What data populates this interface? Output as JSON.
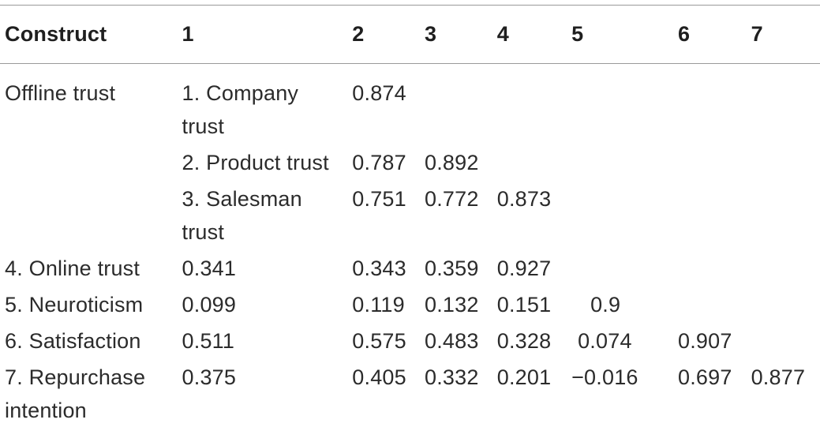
{
  "headers": [
    "Construct",
    "1",
    "2",
    "3",
    "4",
    "5",
    "6",
    "7"
  ],
  "rows": [
    {
      "construct": "Offline trust",
      "sub": "1. Company trust",
      "v2": "0.874",
      "v3": "",
      "v4": "",
      "v5": "",
      "v6": "",
      "v7": "",
      "v1": ""
    },
    {
      "construct": "",
      "sub": "2. Product trust",
      "v2": "0.787",
      "v3": "0.892",
      "v4": "",
      "v5": "",
      "v6": "",
      "v7": "",
      "v1": ""
    },
    {
      "construct": "",
      "sub": "3. Salesman trust",
      "v2": "0.751",
      "v3": "0.772",
      "v4": "0.873",
      "v5": "",
      "v6": "",
      "v7": "",
      "v1": ""
    },
    {
      "construct": "4. Online trust",
      "sub": "",
      "v1": "0.341",
      "v2": "0.343",
      "v3": "0.359",
      "v4": "0.927",
      "v5": "",
      "v6": "",
      "v7": ""
    },
    {
      "construct": "5. Neuroticism",
      "sub": "",
      "v1": "0.099",
      "v2": "0.119",
      "v3": "0.132",
      "v4": "0.151",
      "v5": "0.9",
      "v6": "",
      "v7": ""
    },
    {
      "construct": "6. Satisfaction",
      "sub": "",
      "v1": "0.511",
      "v2": "0.575",
      "v3": "0.483",
      "v4": "0.328",
      "v5": "0.074",
      "v6": "0.907",
      "v7": ""
    },
    {
      "construct": "7. Repurchase intention",
      "sub": "",
      "v1": "0.375",
      "v2": "0.405",
      "v3": "0.332",
      "v4": "0.201",
      "v5": "−0.016",
      "v6": "0.697",
      "v7": "0.877"
    }
  ]
}
